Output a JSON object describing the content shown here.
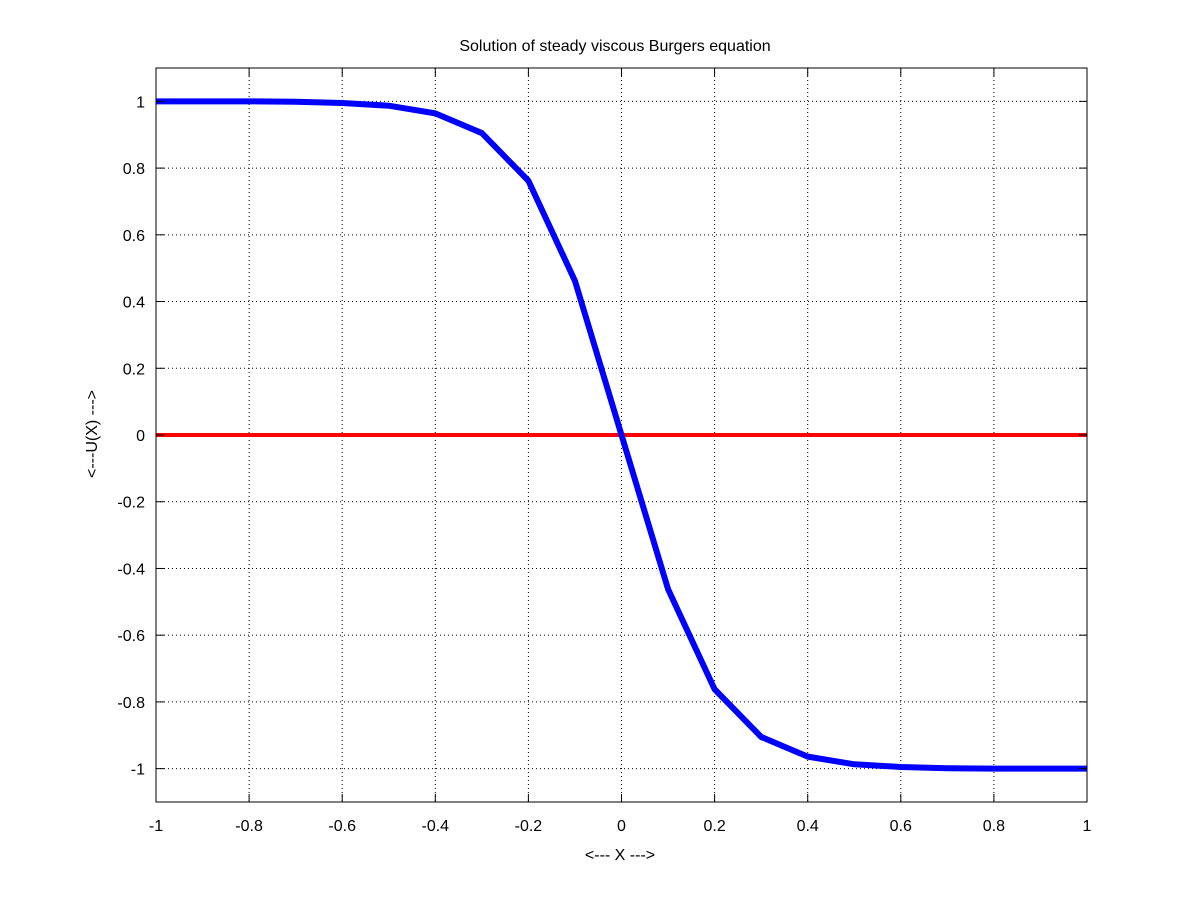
{
  "chart_data": {
    "type": "line",
    "title": "Solution of steady viscous Burgers equation",
    "xlabel": "<--- X --->",
    "ylabel": "<---U(X) --->",
    "xlim": [
      -1,
      1
    ],
    "ylim": [
      -1.1,
      1.1
    ],
    "grid": true,
    "grid_style": "dotted",
    "x_ticks": [
      -1,
      -0.8,
      -0.6,
      -0.4,
      -0.2,
      0,
      0.2,
      0.4,
      0.6,
      0.8,
      1
    ],
    "x_tick_labels": [
      "-1",
      "-0.8",
      "-0.6",
      "-0.4",
      "-0.2",
      "0",
      "0.2",
      "0.4",
      "0.6",
      "0.8",
      "1"
    ],
    "y_ticks": [
      -1,
      -0.8,
      -0.6,
      -0.4,
      -0.2,
      0,
      0.2,
      0.4,
      0.6,
      0.8,
      1
    ],
    "y_tick_labels": [
      "-1",
      "-0.8",
      "-0.6",
      "-0.4",
      "-0.2",
      "0",
      "0.2",
      "0.4",
      "0.6",
      "0.8",
      "1"
    ],
    "series": [
      {
        "color": "#0000ff",
        "x": [
          -1,
          -0.9,
          -0.8,
          -0.7,
          -0.6,
          -0.5,
          -0.4,
          -0.3,
          -0.2,
          -0.1,
          0,
          0.1,
          0.2,
          0.3,
          0.4,
          0.5,
          0.6,
          0.7,
          0.8,
          0.9,
          1
        ],
        "y": [
          1.0,
          1.0,
          1.0,
          0.999,
          0.995,
          0.987,
          0.964,
          0.905,
          0.762,
          0.462,
          0.0,
          -0.462,
          -0.762,
          -0.905,
          -0.964,
          -0.987,
          -0.995,
          -0.999,
          -1.0,
          -1.0,
          -1.0
        ]
      },
      {
        "color": "#ff0000",
        "x": [
          -1,
          1
        ],
        "y": [
          0,
          0
        ]
      }
    ]
  }
}
